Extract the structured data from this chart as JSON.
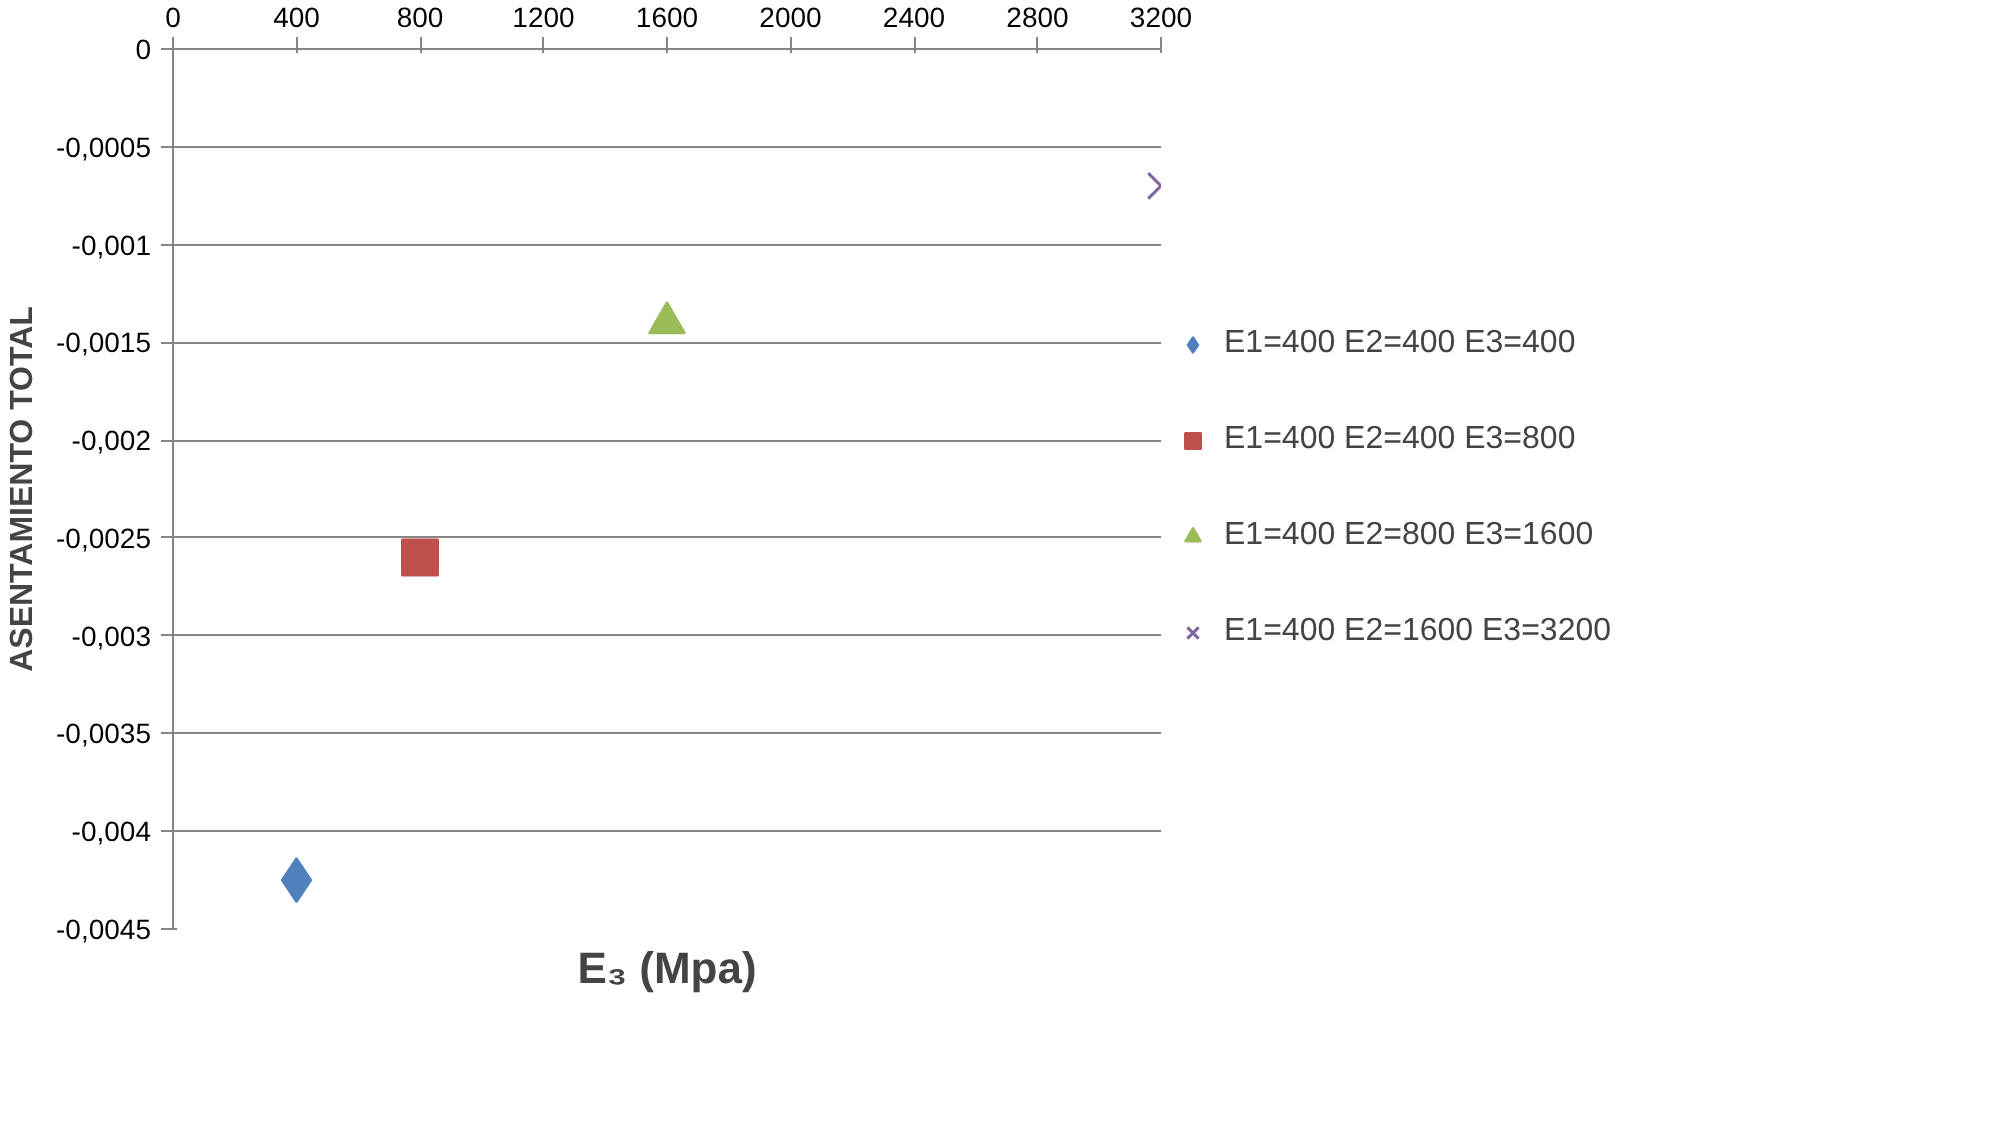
{
  "chart_data": {
    "type": "scatter",
    "xlabel": "E₃ (Mpa)",
    "ylabel": "ASENTAMIENTO TOTAL",
    "xlim": [
      0,
      3200
    ],
    "ylim": [
      -0.0045,
      0
    ],
    "xticks": [
      0,
      400,
      800,
      1200,
      1600,
      2000,
      2400,
      2800,
      3200
    ],
    "yticks": [
      0,
      {
        "value": -0.0005,
        "label": "-0,0005"
      },
      {
        "value": -0.001,
        "label": "-0,001"
      },
      {
        "value": -0.0015,
        "label": "-0,0015"
      },
      {
        "value": -0.002,
        "label": "-0,002"
      },
      {
        "value": -0.0025,
        "label": "-0,0025"
      },
      {
        "value": -0.003,
        "label": "-0,003"
      },
      {
        "value": -0.0035,
        "label": "-0,0035"
      },
      {
        "value": -0.004,
        "label": "-0,004"
      },
      {
        "value": -0.0045,
        "label": "-0,0045"
      }
    ],
    "grid": "y",
    "legend": "right",
    "series": [
      {
        "name": "E1=400 E2=400 E3=400",
        "color": "#4f81bd",
        "marker": "diamond",
        "x": [
          400
        ],
        "values": [
          -0.00425
        ]
      },
      {
        "name": "E1=400 E2=400 E3=800",
        "color": "#c0504d",
        "marker": "square",
        "x": [
          800
        ],
        "values": [
          -0.0026
        ]
      },
      {
        "name": "E1=400 E2=800 E3=1600",
        "color": "#9bbb59",
        "marker": "triangle",
        "x": [
          1600
        ],
        "values": [
          -0.0014
        ]
      },
      {
        "name": "E1=400 E2=1600 E3=3200",
        "color": "#8064a2",
        "marker": "cross",
        "x": [
          3200
        ],
        "values": [
          -0.0007
        ]
      }
    ]
  }
}
